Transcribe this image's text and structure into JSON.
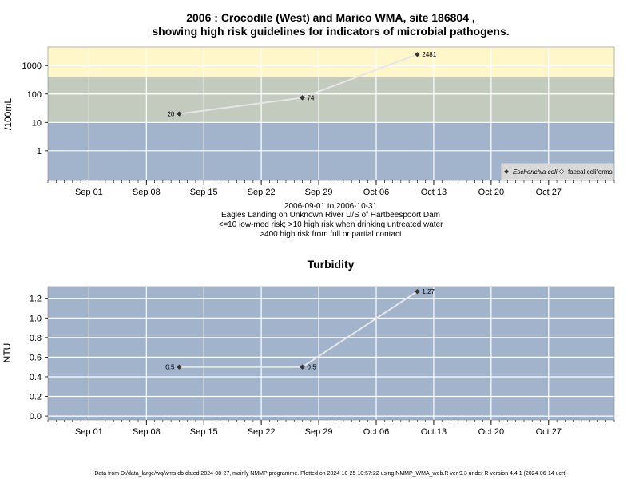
{
  "colors": {
    "high_risk_band": "#fff7c9",
    "mid_band": "#c3cabe",
    "low_band": "#a2b3cc",
    "panel_bg": "#a2b3cc",
    "grid": "#ffffff",
    "line": "#e6e6e6",
    "marker": "#333333"
  },
  "chart_data": [
    {
      "type": "scatter",
      "title_line1": "2006 : Crocodile (West) and Marico WMA, site 186804 ,",
      "title_line2": "showing high risk guidelines for indicators of microbial pathogens.",
      "ylabel": "/100mL",
      "y_scale": "log",
      "yticks": [
        "1",
        "10",
        "100",
        "1000"
      ],
      "ylim": [
        0.09,
        4500
      ],
      "xlim": [
        "2006-08-27",
        "2006-11-04"
      ],
      "xticks": [
        {
          "date": "2006-09-01",
          "label": "Sep 01"
        },
        {
          "date": "2006-09-08",
          "label": "Sep 08"
        },
        {
          "date": "2006-09-15",
          "label": "Sep 15"
        },
        {
          "date": "2006-09-22",
          "label": "Sep 22"
        },
        {
          "date": "2006-09-29",
          "label": "Sep 29"
        },
        {
          "date": "2006-10-06",
          "label": "Oct 06"
        },
        {
          "date": "2006-10-13",
          "label": "Oct 13"
        },
        {
          "date": "2006-10-20",
          "label": "Oct 20"
        },
        {
          "date": "2006-10-27",
          "label": "Oct 27"
        }
      ],
      "bands": [
        {
          "from": 400,
          "to": 4500,
          "color": "#fff7c9"
        },
        {
          "from": 10,
          "to": 400,
          "color": "#c3cabe"
        },
        {
          "from": 0.09,
          "to": 10,
          "color": "#a2b3cc"
        }
      ],
      "series": [
        {
          "name": "Escherichia coli",
          "points": [
            {
              "x": "2006-09-12",
              "y": 20,
              "label": "20",
              "label_side": "left"
            },
            {
              "x": "2006-09-27",
              "y": 74,
              "label": "74",
              "label_side": "right"
            },
            {
              "x": "2006-10-11",
              "y": 2481,
              "label": "2481",
              "label_side": "right"
            }
          ]
        }
      ],
      "legend": {
        "position": "bottom-right",
        "items": [
          "Escherichia coli",
          "faecal coliforms"
        ]
      },
      "notes": [
        "2006-09-01 to 2006-10-31",
        "Eagles Landing on Unknown River U/S of Hartbeespoort Dam",
        "<=10 low-med risk; >10 high risk when drinking untreated water",
        ">400 high risk from full or partial contact"
      ]
    },
    {
      "type": "scatter",
      "title": "Turbidity",
      "ylabel": "NTU",
      "yticks": [
        "0.0",
        "0.2",
        "0.4",
        "0.6",
        "0.8",
        "1.0",
        "1.2"
      ],
      "ylim": [
        -0.04,
        1.32
      ],
      "xlim": [
        "2006-08-27",
        "2006-11-04"
      ],
      "xticks": [
        {
          "date": "2006-09-01",
          "label": "Sep 01"
        },
        {
          "date": "2006-09-08",
          "label": "Sep 08"
        },
        {
          "date": "2006-09-15",
          "label": "Sep 15"
        },
        {
          "date": "2006-09-22",
          "label": "Sep 22"
        },
        {
          "date": "2006-09-29",
          "label": "Sep 29"
        },
        {
          "date": "2006-10-06",
          "label": "Oct 06"
        },
        {
          "date": "2006-10-13",
          "label": "Oct 13"
        },
        {
          "date": "2006-10-20",
          "label": "Oct 20"
        },
        {
          "date": "2006-10-27",
          "label": "Oct 27"
        }
      ],
      "series": [
        {
          "points": [
            {
              "x": "2006-09-12",
              "y": 0.5,
              "label": "0.5",
              "label_side": "left"
            },
            {
              "x": "2006-09-27",
              "y": 0.5,
              "label": "0.5",
              "label_side": "right"
            },
            {
              "x": "2006-10-11",
              "y": 1.27,
              "label": "1.27",
              "label_side": "right"
            }
          ]
        }
      ]
    }
  ],
  "footer": "Data from D:/data_large/wq/wms.db dated 2024-08-27, mainly NMMP programme. Plotted on 2024-10-25 10:57:22 using NMMP_WMA_web.R ver 9.3 under R version 4.4.1 (2024-06-14 ucrt)"
}
